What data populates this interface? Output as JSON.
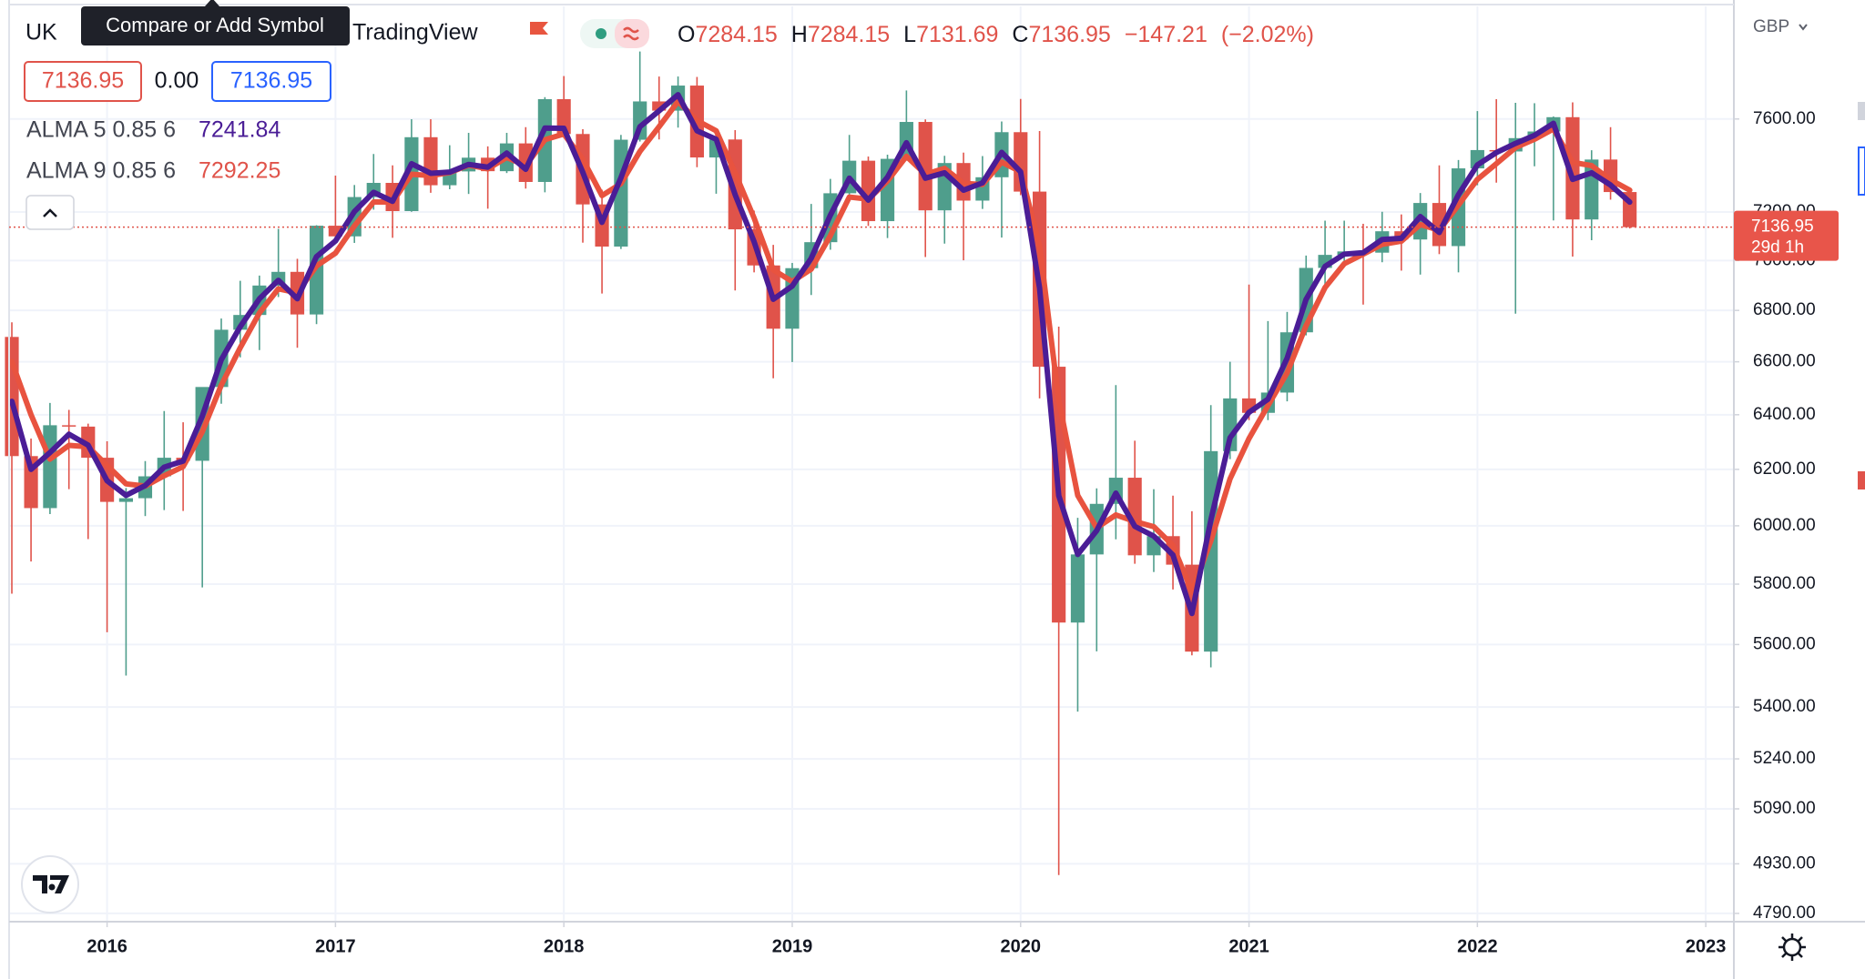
{
  "chart_data": {
    "type": "candlestick",
    "symbol": "UK",
    "source": "TradingView",
    "tooltip": "Compare or Add Symbol",
    "currency": "GBP",
    "countdown": "29d 1h",
    "legend_keys": {
      "o": "O",
      "h": "H",
      "l": "L",
      "c": "C"
    },
    "change": {
      "value": -147.21,
      "label": "−147.21"
    },
    "change_pct": {
      "value": -2.02,
      "label": "(−2.02%)"
    },
    "spread": {
      "value": 0,
      "label": "0.00"
    },
    "up_color": "#4f9e8c",
    "down_color": "#e0534a",
    "log_scale": true,
    "grid": true,
    "x": [
      2015.583,
      2015.667,
      2015.75,
      2015.833,
      2015.917,
      2016,
      2016.083,
      2016.167,
      2016.25,
      2016.333,
      2016.417,
      2016.5,
      2016.583,
      2016.667,
      2016.75,
      2016.833,
      2016.917,
      2017,
      2017.083,
      2017.167,
      2017.25,
      2017.333,
      2017.417,
      2017.5,
      2017.583,
      2017.667,
      2017.75,
      2017.833,
      2017.917,
      2018,
      2018.083,
      2018.167,
      2018.25,
      2018.333,
      2018.417,
      2018.5,
      2018.583,
      2018.667,
      2018.75,
      2018.833,
      2018.917,
      2019,
      2019.083,
      2019.167,
      2019.25,
      2019.333,
      2019.417,
      2019.5,
      2019.583,
      2019.667,
      2019.75,
      2019.833,
      2019.917,
      2020,
      2020.083,
      2020.167,
      2020.25,
      2020.333,
      2020.417,
      2020.5,
      2020.583,
      2020.667,
      2020.75,
      2020.833,
      2020.917,
      2021,
      2021.083,
      2021.167,
      2021.25,
      2021.333,
      2021.417,
      2021.5,
      2021.583,
      2021.667,
      2021.75,
      2021.833,
      2021.917,
      2022,
      2022.083,
      2022.167,
      2022.25,
      2022.333,
      2022.417,
      2022.5,
      2022.583,
      2022.667
    ],
    "open": [
      6696,
      6248,
      6062,
      6361,
      6356,
      6242,
      6084,
      6097,
      6175,
      6242,
      6231,
      6504,
      6724,
      6782,
      6899,
      6954,
      6784,
      7143,
      7099,
      7263,
      7323,
      7204,
      7520,
      7313,
      7372,
      7431,
      7373,
      7493,
      7327,
      7688,
      7534,
      7232,
      7057,
      7509,
      7678,
      7637,
      7749,
      7432,
      7510,
      7128,
      6980,
      6728,
      6969,
      7075,
      7279,
      7418,
      7162,
      7426,
      7587,
      7207,
      7408,
      7248,
      7347,
      7542,
      7286,
      6581,
      5672,
      5901,
      6077,
      6170,
      5898,
      5964,
      5866,
      5577,
      6266,
      6461,
      6407,
      6483,
      6714,
      6970,
      7023,
      7037,
      7032,
      7120,
      7086,
      7238,
      7059,
      7385,
      7464,
      7458,
      7516,
      7545,
      7608,
      7169,
      7423,
      7284.15
    ],
    "high": [
      6753,
      6312,
      6444,
      6418,
      6367,
      6302,
      6133,
      6230,
      6414,
      6372,
      6499,
      6768,
      6918,
      6939,
      7130,
      7007,
      7145,
      7354,
      7314,
      7447,
      7398,
      7599,
      7599,
      7485,
      7539,
      7480,
      7539,
      7564,
      7697,
      7792,
      7555,
      7294,
      7530,
      7904,
      7790,
      7790,
      7788,
      7551,
      7551,
      7206,
      7064,
      6990,
      7234,
      7340,
      7530,
      7436,
      7444,
      7727,
      7598,
      7439,
      7453,
      7438,
      7589,
      7689,
      7547,
      6736,
      6028,
      6132,
      6511,
      6304,
      6129,
      6106,
      6051,
      6436,
      6600,
      6903,
      6758,
      6794,
      7020,
      7164,
      7164,
      7151,
      7201,
      7190,
      7280,
      7398,
      7421,
      7635,
      7688,
      7672,
      7670,
      7611,
      7674,
      7463,
      7564,
      7284.15
    ],
    "low": [
      5768,
      5877,
      6041,
      6129,
      5954,
      5640,
      5500,
      6034,
      6055,
      6052,
      5789,
      6441,
      6617,
      6645,
      6853,
      6654,
      6746,
      7083,
      7072,
      7210,
      7093,
      7201,
      7281,
      7296,
      7276,
      7214,
      7365,
      7299,
      7283,
      7529,
      7073,
      6867,
      7047,
      7501,
      7510,
      7562,
      7390,
      7277,
      6879,
      6952,
      6537,
      6599,
      6861,
      7044,
      7274,
      7142,
      7092,
      7418,
      7014,
      7069,
      7001,
      7213,
      7094,
      7271,
      6461,
      4898,
      5386,
      5578,
      5953,
      5869,
      5841,
      5782,
      5565,
      5526,
      6237,
      6380,
      6380,
      6450,
      6702,
      6873,
      6993,
      6823,
      6993,
      6959,
      6943,
      7026,
      6952,
      7313,
      7324,
      6787,
      7394,
      7165,
      7016,
      7083,
      7252,
      7131.69
    ],
    "close": [
      6248,
      6062,
      6361,
      6356,
      6242,
      6084,
      6097,
      6175,
      6242,
      6231,
      6504,
      6724,
      6782,
      6899,
      6954,
      6784,
      7143,
      7099,
      7263,
      7323,
      7204,
      7520,
      7313,
      7372,
      7431,
      7373,
      7493,
      7327,
      7688,
      7534,
      7232,
      7057,
      7509,
      7678,
      7637,
      7749,
      7432,
      7510,
      7128,
      6980,
      6728,
      6969,
      7075,
      7279,
      7418,
      7162,
      7426,
      7587,
      7207,
      7408,
      7248,
      7347,
      7542,
      7286,
      6581,
      5672,
      5901,
      6077,
      6170,
      5898,
      5964,
      5866,
      5577,
      6266,
      6461,
      6407,
      6483,
      6714,
      6970,
      7023,
      7037,
      7032,
      7120,
      7086,
      7238,
      7059,
      7385,
      7464,
      7458,
      7516,
      7545,
      7608,
      7169,
      7423,
      7284.15,
      7136.95
    ],
    "series": [
      {
        "name": "ALMA 9 0.85 6",
        "color": "#e8533f",
        "width": 6,
        "values": [
          6600,
          6400,
          6237,
          6287,
          6282,
          6214,
          6148,
          6140,
          6177,
          6210,
          6337,
          6511,
          6654,
          6790,
          6886,
          6870,
          6978,
          7030,
          7142,
          7242,
          7242,
          7360,
          7354,
          7367,
          7399,
          7383,
          7432,
          7397,
          7509,
          7534,
          7424,
          7269,
          7320,
          7458,
          7566,
          7678,
          7593,
          7548,
          7365,
          7175,
          6962,
          6915,
          6965,
          7102,
          7263,
          7254,
          7331,
          7437,
          7360,
          7385,
          7321,
          7316,
          7412,
          7371,
          7061,
          6454,
          6107,
          5993,
          6038,
          6015,
          5997,
          5932,
          5774,
          5948,
          6166,
          6312,
          6434,
          6558,
          6740,
          6891,
          6987,
          7026,
          7066,
          7079,
          7148,
          7124,
          7229,
          7338,
          7405,
          7475,
          7511,
          7556,
          7411,
          7397,
          7336,
          7292.25
        ]
      },
      {
        "name": "ALMA 5 0.85 6",
        "color": "#4a1d96",
        "width": 6,
        "values": [
          6450,
          6200,
          6261,
          6328,
          6288,
          6159,
          6107,
          6142,
          6208,
          6230,
          6395,
          6608,
          6736,
          6846,
          6920,
          6846,
          7016,
          7080,
          7202,
          7283,
          7245,
          7405,
          7364,
          7369,
          7402,
          7390,
          7451,
          7381,
          7560,
          7559,
          7368,
          7157,
          7345,
          7566,
          7636,
          7708,
          7548,
          7511,
          7273,
          7077,
          6844,
          6897,
          7009,
          7187,
          7343,
          7250,
          7347,
          7496,
          7343,
          7366,
          7292,
          7323,
          7454,
          7370,
          6889,
          6106,
          5901,
          5983,
          6115,
          5998,
          5964,
          5899,
          5702,
          6020,
          6315,
          6409,
          6458,
          6614,
          6844,
          6976,
          7026,
          7032,
          7086,
          7091,
          7181,
          7115,
          7273,
          7400,
          7453,
          7493,
          7528,
          7581,
          7338,
          7366,
          7314,
          7241.84
        ]
      }
    ],
    "xlim": [
      2015.571,
      2023.123
    ],
    "xticks": [
      2016,
      2017,
      2018,
      2019,
      2020,
      2021,
      2022,
      2023
    ],
    "ylim": [
      4767,
      8114
    ],
    "yticks": [
      {
        "value": 4790,
        "label": "4790.00"
      },
      {
        "value": 4930,
        "label": "4930.00"
      },
      {
        "value": 5090,
        "label": "5090.00"
      },
      {
        "value": 5240,
        "label": "5240.00"
      },
      {
        "value": 5400,
        "label": "5400.00"
      },
      {
        "value": 5600,
        "label": "5600.00"
      },
      {
        "value": 5800,
        "label": "5800.00"
      },
      {
        "value": 6000,
        "label": "6000.00"
      },
      {
        "value": 6200,
        "label": "6200.00"
      },
      {
        "value": 6400,
        "label": "6400.00"
      },
      {
        "value": 6600,
        "label": "6600.00"
      },
      {
        "value": 6800,
        "label": "6800.00"
      },
      {
        "value": 7000,
        "label": "7000.00"
      },
      {
        "value": 7200,
        "label": "7200.00"
      },
      {
        "value": 7600,
        "label": "7600.00"
      }
    ]
  }
}
